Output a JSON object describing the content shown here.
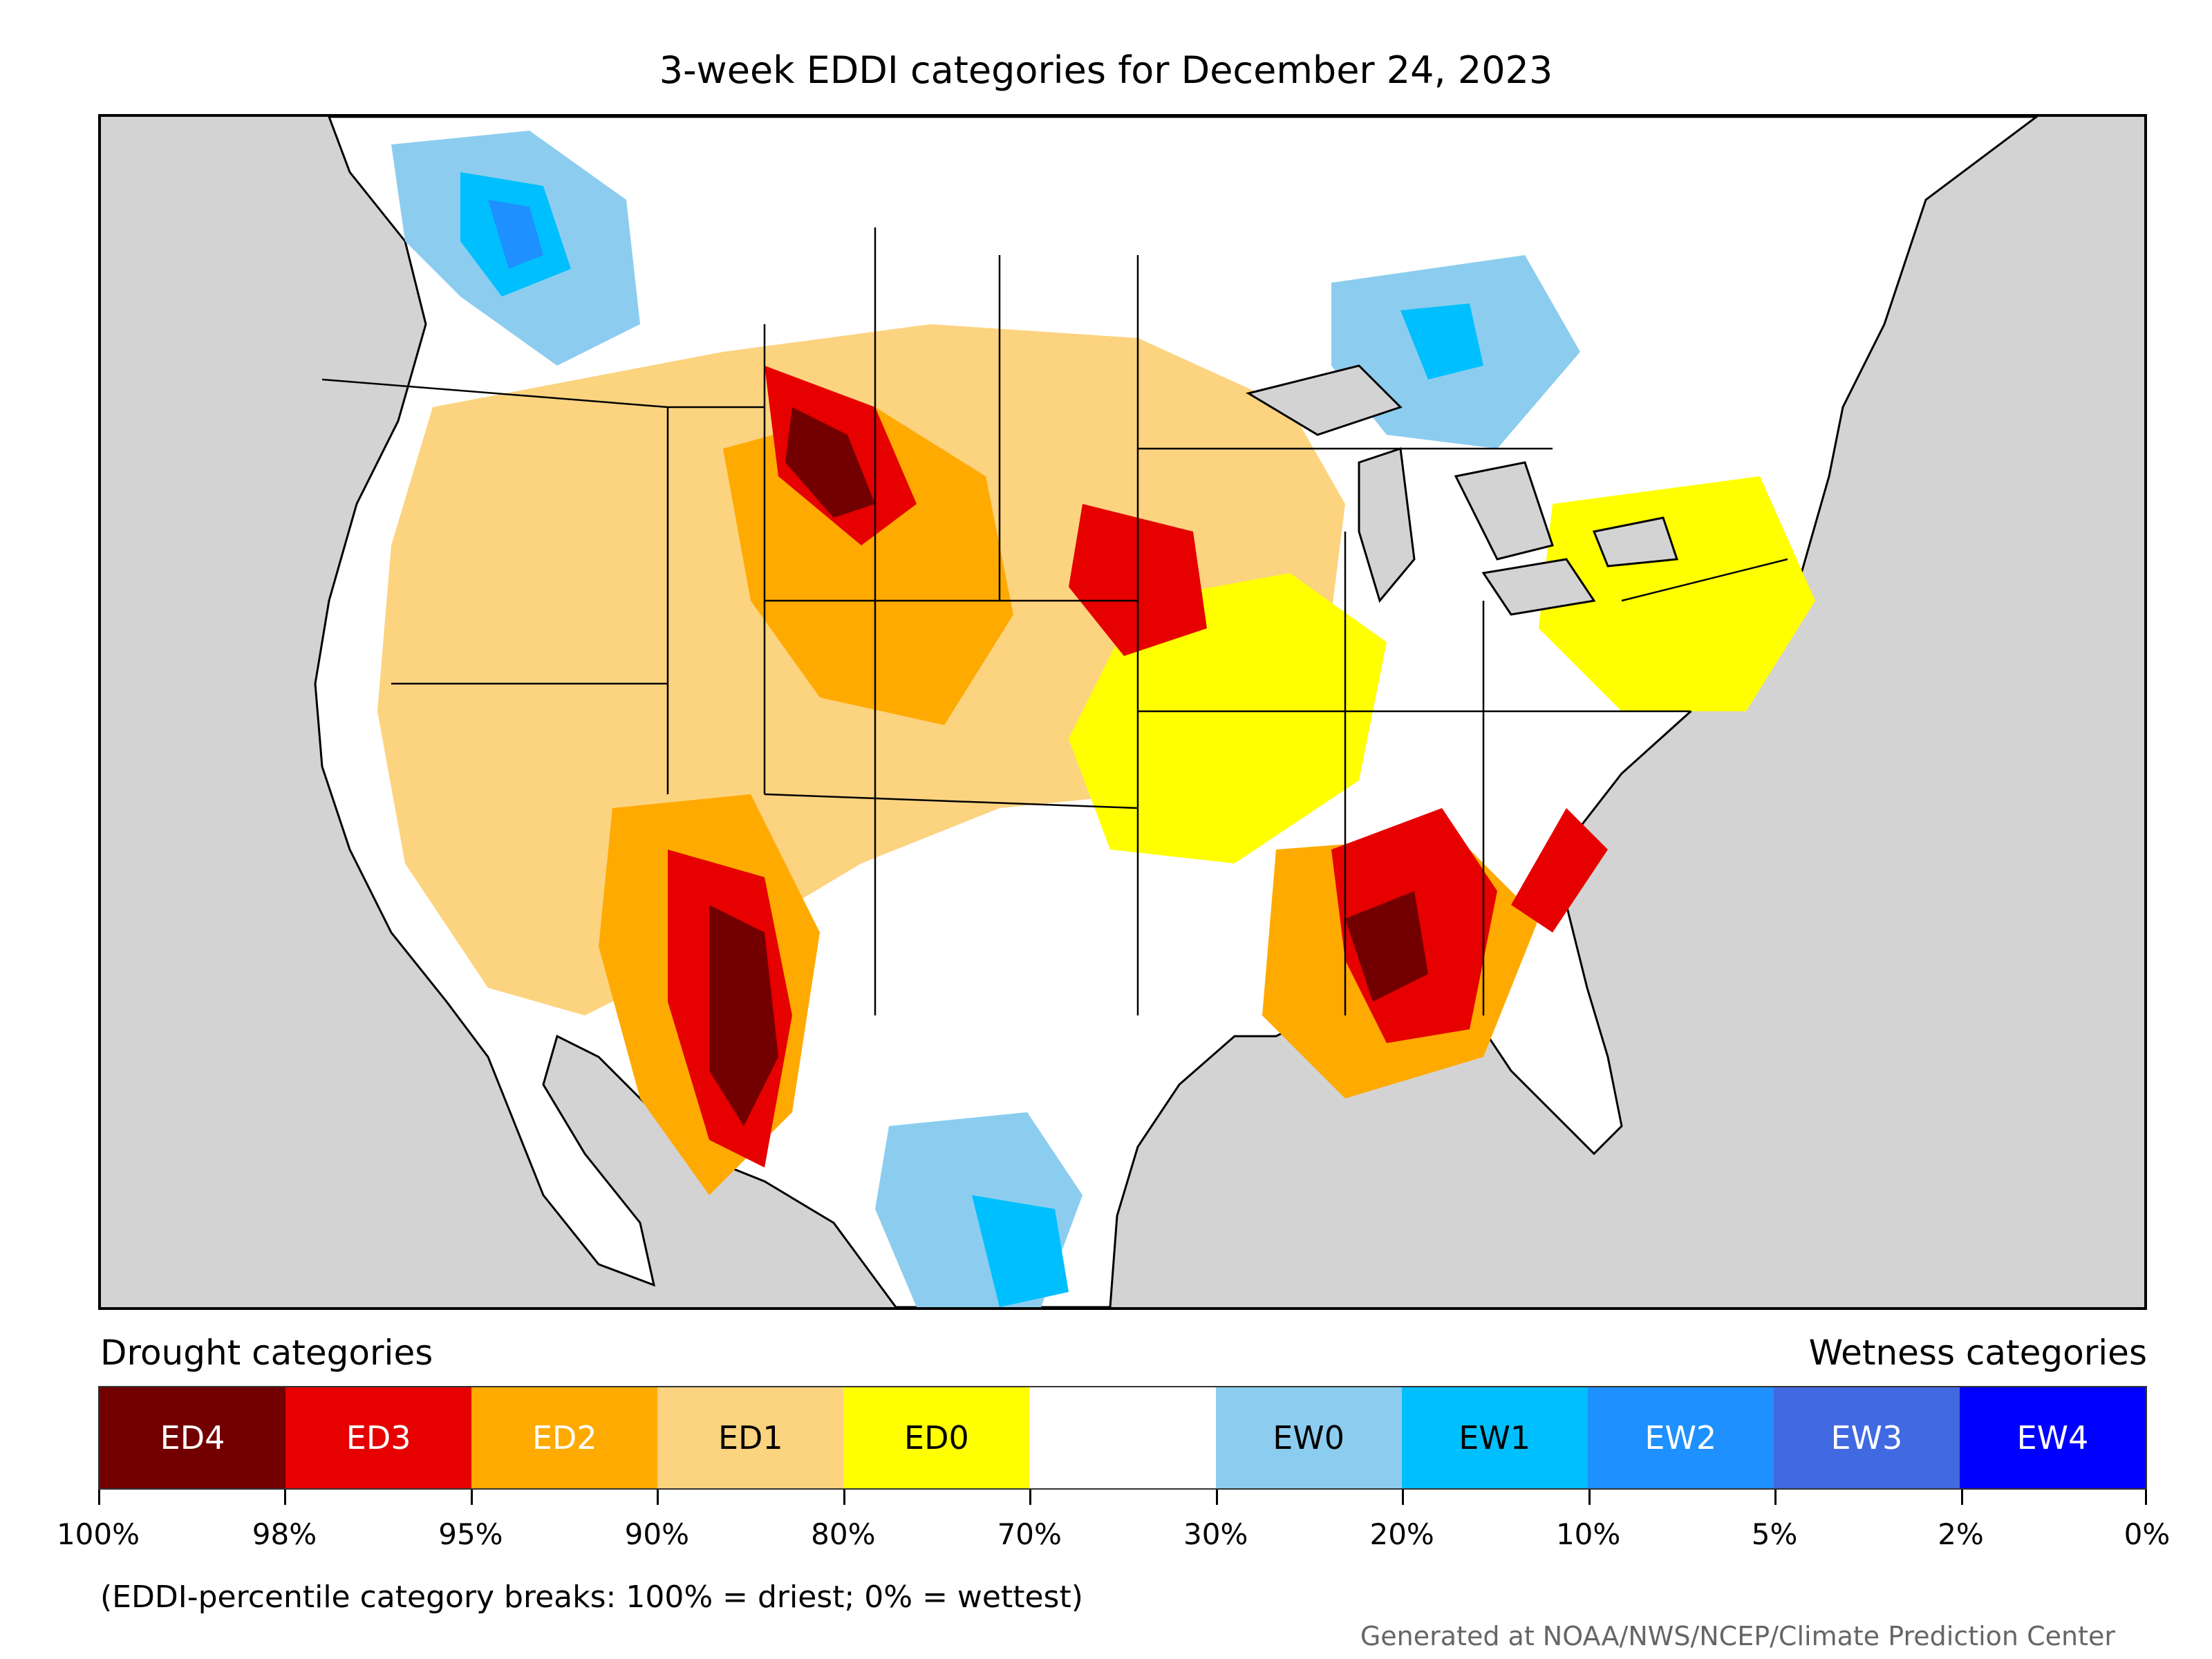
{
  "title": "3-week EDDI categories for December 24, 2023",
  "legend": {
    "drought_heading": "Drought categories",
    "wetness_heading": "Wetness categories",
    "categories": [
      {
        "label": "ED4",
        "color": "#730000",
        "text_color": "#ffffff"
      },
      {
        "label": "ED3",
        "color": "#e60000",
        "text_color": "#ffffff"
      },
      {
        "label": "ED2",
        "color": "#ffaa00",
        "text_color": "#ffffff"
      },
      {
        "label": "ED1",
        "color": "#fcd37f",
        "text_color": "#000000"
      },
      {
        "label": "ED0",
        "color": "#ffff00",
        "text_color": "#000000"
      },
      {
        "label": "",
        "color": "#ffffff",
        "text_color": "#000000"
      },
      {
        "label": "EW0",
        "color": "#8ccdef",
        "text_color": "#000000"
      },
      {
        "label": "EW1",
        "color": "#00bfff",
        "text_color": "#000000"
      },
      {
        "label": "EW2",
        "color": "#1e90ff",
        "text_color": "#ffffff"
      },
      {
        "label": "EW3",
        "color": "#4169e1",
        "text_color": "#ffffff"
      },
      {
        "label": "EW4",
        "color": "#0000ff",
        "text_color": "#ffffff"
      }
    ],
    "ticks": [
      "100%",
      "98%",
      "95%",
      "90%",
      "80%",
      "70%",
      "30%",
      "20%",
      "10%",
      "5%",
      "2%",
      "0%"
    ]
  },
  "note": "(EDDI-percentile category breaks: 100% = driest; 0% = wettest)",
  "credit": "Generated at NOAA/NWS/NCEP/Climate Prediction Center",
  "map": {
    "ocean_color": "#d3d3d3",
    "land_color": "#ffffff"
  }
}
